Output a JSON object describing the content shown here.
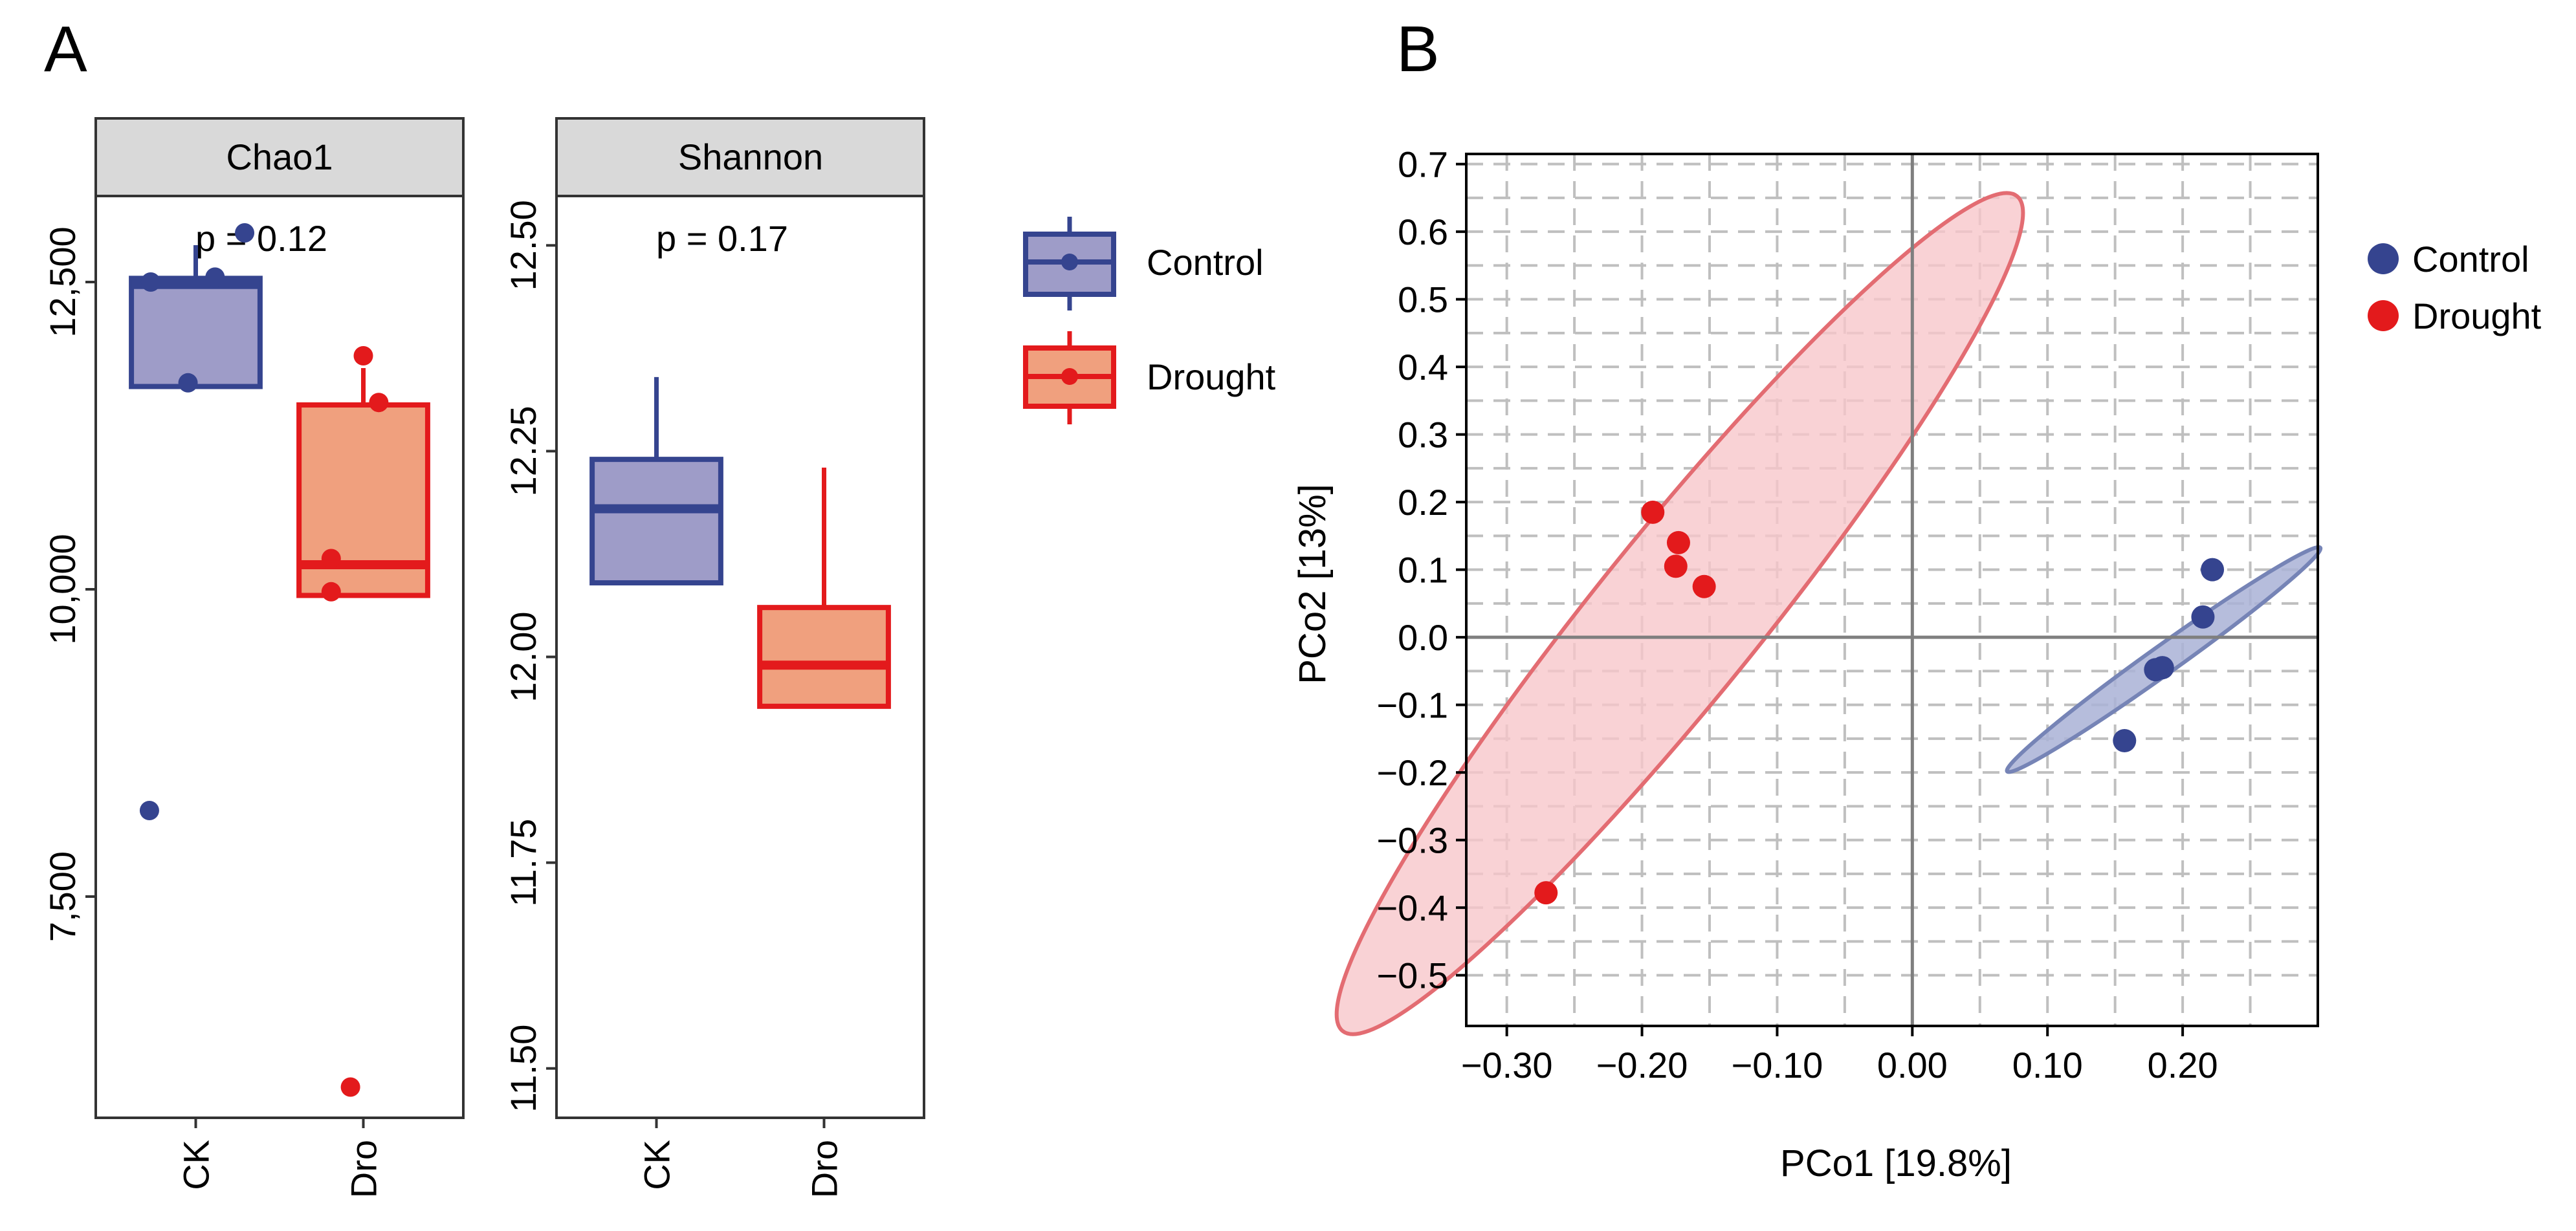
{
  "colors": {
    "control": "#35448F",
    "control_fill": "#9E9CC8",
    "drought": "#E31A1C",
    "drought_fill": "#F0A07E",
    "strip_bg": "#D9D9D9",
    "ellipse_control_fill": "#A9B1D6",
    "ellipse_control_stroke": "#7684B6",
    "ellipse_drought_fill": "#F7C7CB",
    "ellipse_drought_stroke": "#E36C72",
    "grid": "#BFBFBF"
  },
  "panel_labels": {
    "a": "A",
    "b": "B"
  },
  "legend_a": {
    "control": "Control",
    "drought": "Drought"
  },
  "legend_b": {
    "control": "Control",
    "drought": "Drought"
  },
  "chart_data": [
    {
      "id": "chao1",
      "type": "box",
      "title": "Chao1",
      "p_text": "p = 0.12",
      "categories": [
        "CK",
        "Dro"
      ],
      "ylim": [
        5700,
        13200
      ],
      "yticks": [
        7500,
        10000,
        12500
      ],
      "ytick_labels": [
        "7,500",
        "10,000",
        "12,500"
      ],
      "boxes": [
        {
          "group": "Control",
          "q1": 11650,
          "median": 12480,
          "q3": 12530,
          "whisker_low": 11650,
          "whisker_high": 12800
        },
        {
          "group": "Drought",
          "q1": 9950,
          "median": 10200,
          "q3": 11500,
          "whisker_low": 9950,
          "whisker_high": 11800
        }
      ],
      "points": [
        {
          "group": "Control",
          "x_offset": -0.35,
          "y": 12500
        },
        {
          "group": "Control",
          "x_offset": 0.15,
          "y": 12540
        },
        {
          "group": "Control",
          "x_offset": 0.38,
          "y": 12900
        },
        {
          "group": "Control",
          "x_offset": -0.06,
          "y": 11680
        },
        {
          "group": "Control",
          "x_offset": -0.36,
          "y": 8200
        },
        {
          "group": "Drought",
          "x_offset": 0.0,
          "y": 11900
        },
        {
          "group": "Drought",
          "x_offset": 0.12,
          "y": 11520
        },
        {
          "group": "Drought",
          "x_offset": -0.25,
          "y": 10250
        },
        {
          "group": "Drought",
          "x_offset": -0.25,
          "y": 9980
        },
        {
          "group": "Drought",
          "x_offset": -0.1,
          "y": 5950
        }
      ]
    },
    {
      "id": "shannon",
      "type": "box",
      "title": "Shannon",
      "p_text": "p = 0.17",
      "categories": [
        "CK",
        "Dro"
      ],
      "ylim": [
        11.44,
        12.56
      ],
      "yticks": [
        11.5,
        11.75,
        12.0,
        12.25,
        12.5
      ],
      "ytick_labels": [
        "11.50",
        "11.75",
        "12.00",
        "12.25",
        "12.50"
      ],
      "boxes": [
        {
          "group": "Control",
          "q1": 12.09,
          "median": 12.18,
          "q3": 12.24,
          "whisker_low": 12.09,
          "whisker_high": 12.34
        },
        {
          "group": "Drought",
          "q1": 11.94,
          "median": 11.99,
          "q3": 12.06,
          "whisker_low": 11.94,
          "whisker_high": 12.23
        }
      ],
      "points": []
    },
    {
      "id": "pcoa",
      "type": "scatter",
      "xlabel": "PCo1 [19.8%]",
      "ylabel": "PCo2 [13%]",
      "xlim": [
        -0.33,
        0.3
      ],
      "ylim": [
        -0.575,
        0.715
      ],
      "xticks": [
        -0.3,
        -0.2,
        -0.1,
        0.0,
        0.1,
        0.2
      ],
      "xtick_labels": [
        "−0.30",
        "−0.20",
        "−0.10",
        "0.00",
        "0.10",
        "0.20"
      ],
      "yticks": [
        -0.5,
        -0.4,
        -0.3,
        -0.2,
        -0.1,
        0.0,
        0.1,
        0.2,
        0.3,
        0.4,
        0.5,
        0.6,
        0.7
      ],
      "ytick_labels": [
        "−0.5",
        "−0.4",
        "−0.3",
        "−0.2",
        "−0.1",
        "0.0",
        "0.1",
        "0.2",
        "0.3",
        "0.4",
        "0.5",
        "0.6",
        "0.7"
      ],
      "minor_grid_x": [
        -0.25,
        -0.15,
        -0.05,
        0.05,
        0.15,
        0.25
      ],
      "minor_grid_y": [
        -0.45,
        -0.35,
        -0.25,
        -0.15,
        -0.05,
        0.05,
        0.15,
        0.25,
        0.35,
        0.45,
        0.55,
        0.65
      ],
      "series": [
        {
          "name": "Control",
          "points": [
            [
              0.222,
              0.1
            ],
            [
              0.215,
              0.03
            ],
            [
              0.185,
              -0.045
            ],
            [
              0.18,
              -0.048
            ],
            [
              0.157,
              -0.153
            ]
          ]
        },
        {
          "name": "Drought",
          "points": [
            [
              -0.192,
              0.185
            ],
            [
              -0.173,
              0.14
            ],
            [
              -0.175,
              0.105
            ],
            [
              -0.154,
              0.075
            ],
            [
              -0.271,
              -0.378
            ]
          ]
        }
      ],
      "ellipses": [
        {
          "name": "Control",
          "cx": 0.186,
          "cy": -0.033,
          "rx": 0.202,
          "ry": 0.012,
          "angle_deg": 55
        },
        {
          "name": "Drought",
          "cx": -0.172,
          "cy": 0.035,
          "rx": 0.666,
          "ry": 0.064,
          "angle_deg": 68
        }
      ]
    }
  ]
}
